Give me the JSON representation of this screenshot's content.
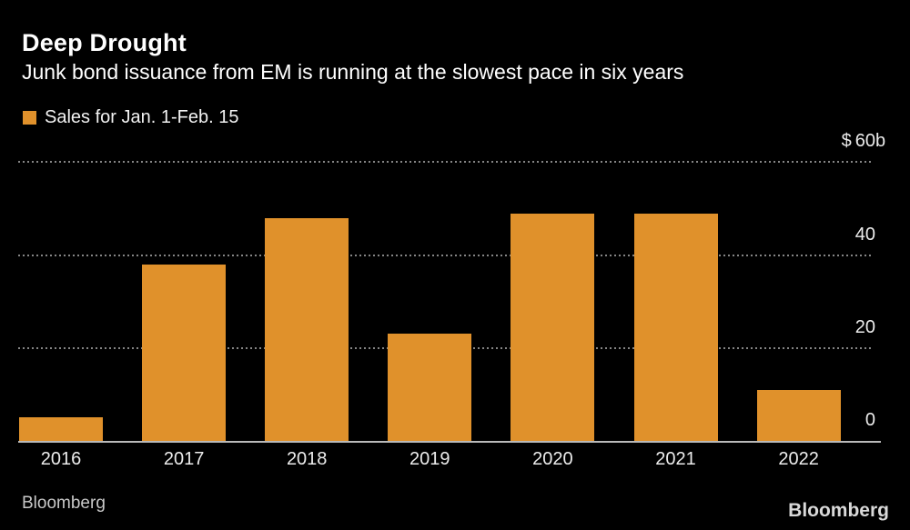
{
  "header": {
    "title": "Deep Drought",
    "subtitle": "Junk bond issuance from EM is running at the slowest pace in six years"
  },
  "legend": {
    "label": "Sales for Jan. 1-Feb. 15"
  },
  "chart_data": {
    "type": "bar",
    "title": "Deep Drought",
    "subtitle": "Junk bond issuance from EM is running at the slowest pace in six years",
    "series_name": "Sales for Jan. 1-Feb. 15",
    "categories": [
      "2016",
      "2017",
      "2018",
      "2019",
      "2020",
      "2021",
      "2022"
    ],
    "values": [
      5,
      38,
      48,
      23,
      49,
      49,
      11
    ],
    "ylim": [
      0,
      60
    ],
    "yticks": [
      {
        "value": 60,
        "prefix": "$",
        "label": "60",
        "suffix": "b"
      },
      {
        "value": 40,
        "prefix": "",
        "label": "40",
        "suffix": ""
      },
      {
        "value": 20,
        "prefix": "",
        "label": "20",
        "suffix": ""
      },
      {
        "value": 0,
        "prefix": "",
        "label": "0",
        "suffix": ""
      }
    ],
    "grid": "horizontal-dotted",
    "legend_position": "top-left",
    "bar_color": "#e0912b",
    "background_color": "#000000",
    "text_color": "#ffffff",
    "axis_label_color": "#ececec",
    "gridline_color": "#858585",
    "baseline_color": "#b9b9b9"
  },
  "footer": {
    "source": "Bloomberg",
    "brand": "Bloomberg"
  }
}
